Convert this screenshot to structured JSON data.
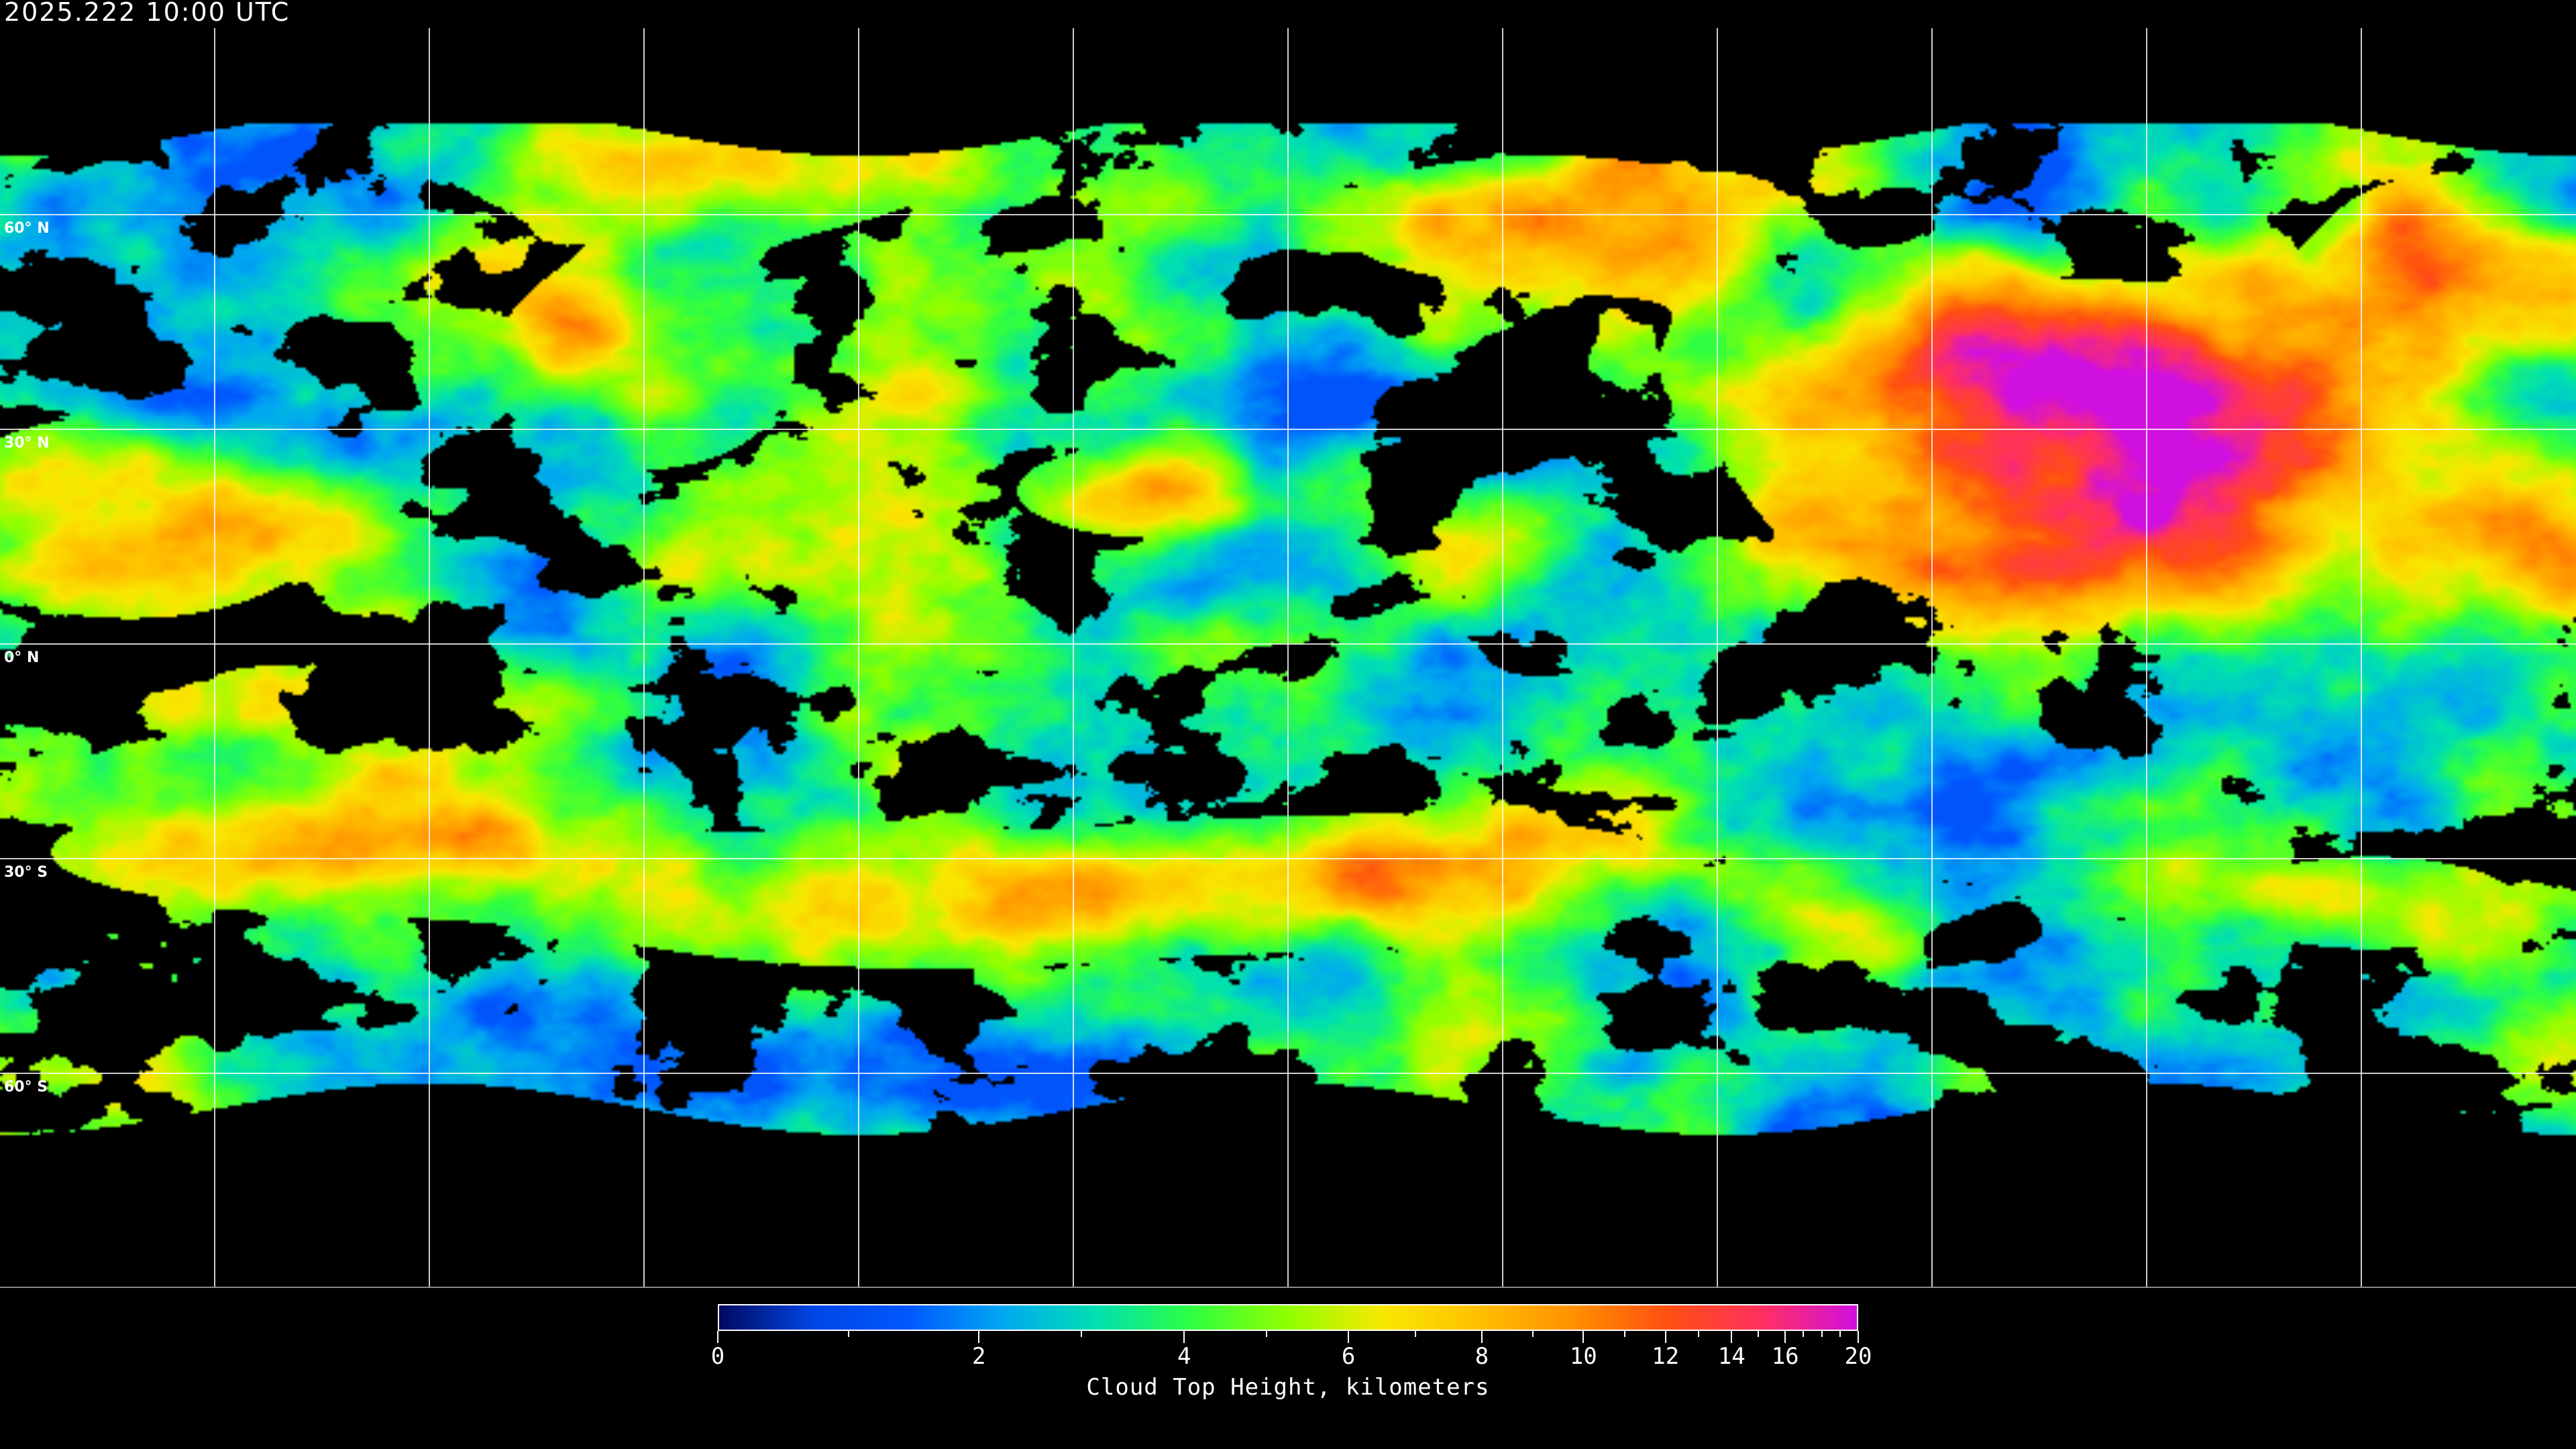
{
  "header": {
    "title": "2025.222 10:00 UTC"
  },
  "map": {
    "projection": "equirectangular",
    "grid_spacing_degrees": 30,
    "gridline_color": "#ffffff",
    "coastline_color": "#ffffff",
    "latitude_labels": [
      "60° N",
      "30° N",
      "0° N",
      "30° S",
      "60° S"
    ],
    "latitude_values": [
      60,
      30,
      0,
      -30,
      -60
    ]
  },
  "colorbar": {
    "label": "Cloud Top Height, kilometers",
    "min": 0,
    "max": 20,
    "major_ticks": [
      "0",
      "2",
      "4",
      "6",
      "8",
      "10",
      "12",
      "14",
      "16",
      "20"
    ],
    "minor_ticks": [
      1,
      3,
      5,
      7,
      9,
      11,
      13,
      15,
      17,
      18,
      19
    ],
    "colors": [
      "#000a60",
      "#0046e6",
      "#0058ff",
      "#00a8f0",
      "#00e0b0",
      "#30ff40",
      "#90ff00",
      "#f8e800",
      "#ffc000",
      "#ff9000",
      "#ff5010",
      "#ff3060",
      "#d010e0"
    ]
  }
}
